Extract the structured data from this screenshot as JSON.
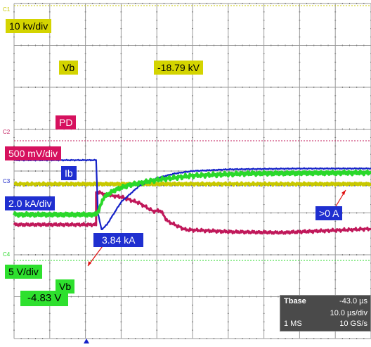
{
  "colors": {
    "ch1": "#c8c800",
    "ch2": "#c0185a",
    "ch3": "#1522c8",
    "ch4": "#2ad82a",
    "grid": "#9a9a9a"
  },
  "channels": {
    "c1": "C1",
    "c2": "C2",
    "c3": "C3",
    "c4": "C4"
  },
  "labels": {
    "ch1_scale": "10 kv/div",
    "ch1_name": "Vb",
    "ch1_value": "-18.79 kV",
    "ch2_name": "PD",
    "ch2_scale": "500 mV/div",
    "ch3_name": "Ib",
    "ch3_scale": "2.0 kA/div",
    "ch3_peak": "3.84 kA",
    "ch3_final": ">0 A",
    "ch4_scale": "5 V/div",
    "ch4_name": "Vb",
    "ch4_value": "-4.83 V"
  },
  "timebase": {
    "tbase_label": "Tbase",
    "tbase_value": "-43.0 µs",
    "per_div": "10.0 µs/div",
    "memory": "1 MS",
    "sample_rate": "10 GS/s"
  },
  "chart_data": {
    "type": "line",
    "grid": true,
    "divisions": {
      "x": 10,
      "y": 8
    },
    "trigger_marker": "bottom",
    "series": [
      {
        "name": "C1",
        "points": [
          [
            0,
            -0.31
          ],
          [
            10,
            -0.31
          ]
        ]
      },
      {
        "name": "C2",
        "points": [
          [
            0,
            -1.28
          ],
          [
            2.3,
            -1.28
          ],
          [
            2.3,
            -0.49
          ],
          [
            2.6,
            -0.57
          ],
          [
            3.0,
            -0.62
          ],
          [
            3.5,
            -0.76
          ],
          [
            3.9,
            -0.96
          ],
          [
            4.1,
            -0.94
          ],
          [
            4.3,
            -1.2
          ],
          [
            4.8,
            -1.4
          ],
          [
            6.0,
            -1.45
          ],
          [
            7.5,
            -1.47
          ],
          [
            10,
            -1.38
          ]
        ]
      },
      {
        "name": "C3",
        "points": [
          [
            0,
            0.26
          ],
          [
            2.3,
            0.26
          ],
          [
            2.35,
            -1.0
          ],
          [
            2.45,
            -1.4
          ],
          [
            2.6,
            -1.28
          ],
          [
            3.0,
            -0.74
          ],
          [
            3.5,
            -0.36
          ],
          [
            4.0,
            -0.17
          ],
          [
            4.5,
            -0.06
          ],
          [
            5.0,
            0.0
          ],
          [
            6.0,
            0.04
          ],
          [
            8.0,
            0.06
          ],
          [
            10,
            0.06
          ]
        ]
      },
      {
        "name": "C4",
        "points": [
          [
            0,
            -1.04
          ],
          [
            2.3,
            -1.04
          ],
          [
            2.4,
            -0.89
          ],
          [
            2.5,
            -0.64
          ],
          [
            2.8,
            -0.46
          ],
          [
            3.2,
            -0.34
          ],
          [
            4.0,
            -0.21
          ],
          [
            5.0,
            -0.11
          ],
          [
            6.5,
            -0.06
          ],
          [
            10,
            -0.04
          ]
        ]
      }
    ]
  }
}
